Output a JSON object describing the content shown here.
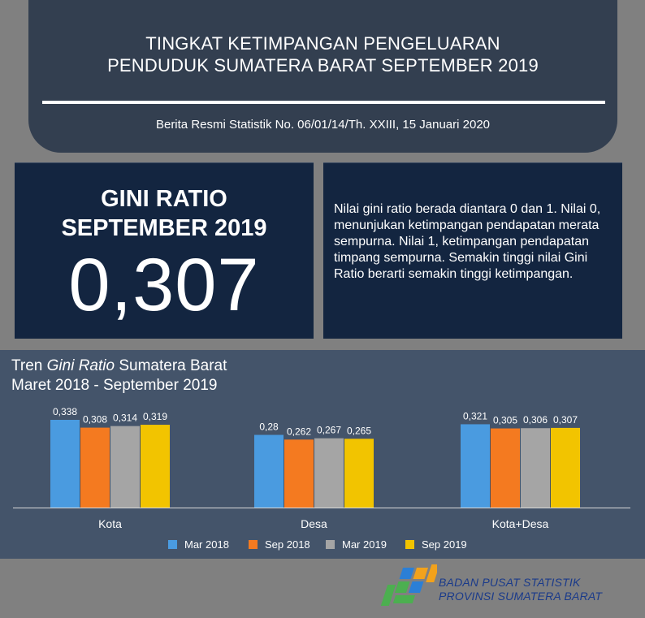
{
  "header": {
    "title_line1": "TINGKAT KETIMPANGAN PENGELUARAN",
    "title_line2": "PENDUDUK SUMATERA BARAT SEPTEMBER 2019",
    "subtitle": "Berita Resmi Statistik No. 06/01/14/Th. XXIII, 15 Januari 2020"
  },
  "gini": {
    "title_line1": "GINI RATIO",
    "title_line2": "SEPTEMBER 2019",
    "value": "0,307"
  },
  "description": "Nilai gini ratio berada diantara 0 dan 1. Nilai 0, menunjukan ketimpangan pendapatan merata sempurna. Nilai 1, ketimpangan pendapatan timpang sempurna. Semakin tinggi nilai Gini Ratio berarti semakin tinggi ketimpangan.",
  "chart_title": {
    "prefix": "Tren ",
    "italic": "Gini Ratio",
    "suffix": " Sumatera Barat",
    "line2": "Maret 2018 - September 2019"
  },
  "chart_data": {
    "type": "bar",
    "categories": [
      "Kota",
      "Desa",
      "Kota+Desa"
    ],
    "series": [
      {
        "name": "Mar 2018",
        "color": "#4a9be0",
        "values": [
          0.338,
          0.28,
          0.321
        ],
        "labels": [
          "0,338",
          "0,28",
          "0,321"
        ]
      },
      {
        "name": "Sep 2018",
        "color": "#f47a20",
        "values": [
          0.308,
          0.262,
          0.305
        ],
        "labels": [
          "0,308",
          "0,262",
          "0,305"
        ]
      },
      {
        "name": "Mar 2019",
        "color": "#a5a5a5",
        "values": [
          0.314,
          0.267,
          0.306
        ],
        "labels": [
          "0,314",
          "0,267",
          "0,306"
        ]
      },
      {
        "name": "Sep 2019",
        "color": "#f2c400",
        "values": [
          0.319,
          0.265,
          0.307
        ],
        "labels": [
          "0,319",
          "0,265",
          "0,307"
        ]
      }
    ],
    "ylim": [
      0,
      0.338
    ],
    "legend_position": "bottom",
    "grid": false
  },
  "footer": {
    "org_line1": "BADAN PUSAT STATISTIK",
    "org_line2": "PROVINSI SUMATERA BARAT"
  }
}
